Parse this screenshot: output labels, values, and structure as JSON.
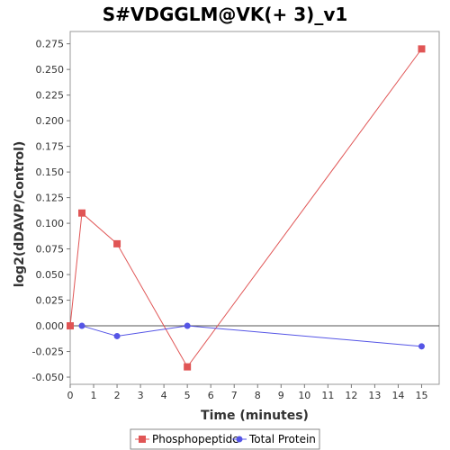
{
  "chart_data": {
    "type": "line",
    "title": "S#VDGGLM@VK(+ 3)_v1",
    "xlabel": "Time (minutes)",
    "ylabel": "log2(dDAVP/Control)",
    "xlim": [
      0,
      15.75
    ],
    "ylim": [
      -0.057,
      0.287
    ],
    "x_ticks": [
      0,
      1,
      2,
      3,
      4,
      5,
      6,
      7,
      8,
      9,
      10,
      11,
      12,
      13,
      14,
      15
    ],
    "y_ticks": [
      -0.05,
      -0.025,
      0.0,
      0.025,
      0.05,
      0.075,
      0.1,
      0.125,
      0.15,
      0.175,
      0.2,
      0.225,
      0.25,
      0.275
    ],
    "y_tick_labels": [
      "-0.050",
      "-0.025",
      "0.000",
      "0.025",
      "0.050",
      "0.075",
      "0.100",
      "0.125",
      "0.150",
      "0.175",
      "0.200",
      "0.225",
      "0.250",
      "0.275"
    ],
    "zero_line": true,
    "grid": false,
    "legend_position": "bottom",
    "series": [
      {
        "name": "Phosphopeptide",
        "color": "#e05555",
        "marker": "square",
        "x": [
          0,
          0.5,
          2,
          5,
          15
        ],
        "y": [
          0.0,
          0.11,
          0.08,
          -0.04,
          0.27
        ]
      },
      {
        "name": "Total Protein",
        "color": "#5555e6",
        "marker": "circle",
        "x": [
          0.5,
          2,
          5,
          15
        ],
        "y": [
          0.0,
          -0.01,
          0.0,
          -0.02
        ]
      }
    ]
  }
}
